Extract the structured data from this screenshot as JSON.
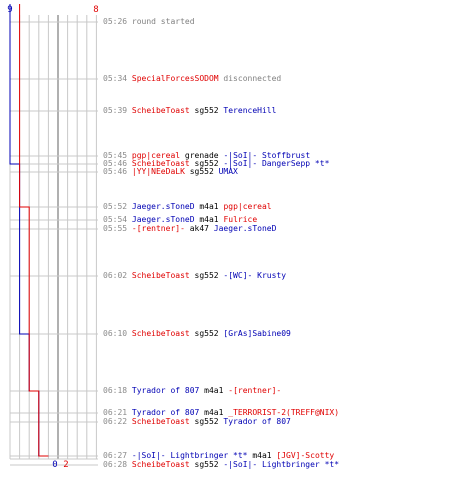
{
  "scores": {
    "blue_start": "9",
    "red_start": "8",
    "blue_end": "0",
    "red_end": "2"
  },
  "colors": {
    "red": "#e00000",
    "blue": "#0000b4",
    "time": "#8a8a8a",
    "grid": "#c8c8c8",
    "axis": "#606060"
  },
  "chart_data": {
    "type": "line",
    "series": [
      {
        "color": "#0000b4",
        "points": [
          [
            0,
            9
          ],
          [
            5,
            8
          ],
          [
            11,
            7
          ],
          [
            12,
            6
          ],
          [
            15,
            5
          ],
          [
            17,
            4
          ],
          [
            18,
            3
          ],
          [
            20,
            2
          ],
          [
            21,
            1
          ],
          [
            24,
            0
          ]
        ]
      },
      {
        "color": "#e00000",
        "points": [
          [
            0,
            8
          ],
          [
            7,
            7
          ],
          [
            12,
            6
          ],
          [
            15,
            5
          ],
          [
            20,
            4
          ],
          [
            21,
            3
          ],
          [
            22,
            2
          ]
        ]
      }
    ]
  },
  "events": [
    {
      "time": "05:26",
      "parts": [
        {
          "text": "round started",
          "c": "gray"
        }
      ]
    },
    {
      "time": "05:34",
      "parts": [
        {
          "text": "SpecialForcesSODOM",
          "c": "red"
        },
        {
          "text": " disconnected",
          "c": "gray"
        }
      ]
    },
    {
      "time": "05:39",
      "parts": [
        {
          "text": "ScheibeToast",
          "c": "red"
        },
        {
          "text": " sg552 ",
          "c": "black"
        },
        {
          "text": "TerenceHill",
          "c": "blue"
        }
      ]
    },
    {
      "time": "05:45",
      "parts": [
        {
          "text": "pgp|cereal",
          "c": "red"
        },
        {
          "text": " grenade ",
          "c": "black"
        },
        {
          "text": "-|SoI|- Stoffbrust",
          "c": "blue"
        }
      ]
    },
    {
      "time": "05:46",
      "parts": [
        {
          "text": "ScheibeToast",
          "c": "red"
        },
        {
          "text": " sg552 ",
          "c": "black"
        },
        {
          "text": "-|SoI|- DangerSepp *t*",
          "c": "blue"
        }
      ]
    },
    {
      "time": "05:46",
      "parts": [
        {
          "text": "|YY|NEeDaLK",
          "c": "red"
        },
        {
          "text": " sg552 ",
          "c": "black"
        },
        {
          "text": "UMAX",
          "c": "blue"
        }
      ]
    },
    {
      "time": "05:52",
      "parts": [
        {
          "text": "Jaeger.sToneD",
          "c": "blue"
        },
        {
          "text": " m4a1 ",
          "c": "black"
        },
        {
          "text": "pgp|cereal",
          "c": "red"
        }
      ]
    },
    {
      "time": "05:54",
      "parts": [
        {
          "text": "Jaeger.sToneD",
          "c": "blue"
        },
        {
          "text": " m4a1 ",
          "c": "black"
        },
        {
          "text": "Fulrice",
          "c": "red"
        }
      ]
    },
    {
      "time": "05:55",
      "parts": [
        {
          "text": "-[rentner]-",
          "c": "red"
        },
        {
          "text": " ak47 ",
          "c": "black"
        },
        {
          "text": "Jaeger.sToneD",
          "c": "blue"
        }
      ]
    },
    {
      "time": "06:02",
      "parts": [
        {
          "text": "ScheibeToast",
          "c": "red"
        },
        {
          "text": " sg552 ",
          "c": "black"
        },
        {
          "text": "-[WC]- Krusty",
          "c": "blue"
        }
      ]
    },
    {
      "time": "06:10",
      "parts": [
        {
          "text": "ScheibeToast",
          "c": "red"
        },
        {
          "text": " sg552 ",
          "c": "black"
        },
        {
          "text": "[GrAs]Sabine09",
          "c": "blue"
        }
      ]
    },
    {
      "time": "06:18",
      "parts": [
        {
          "text": "Tyrador of 807",
          "c": "blue"
        },
        {
          "text": " m4a1 ",
          "c": "black"
        },
        {
          "text": "-[rentner]-",
          "c": "red"
        }
      ]
    },
    {
      "time": "06:21",
      "parts": [
        {
          "text": "Tyrador of 807",
          "c": "blue"
        },
        {
          "text": " m4a1 ",
          "c": "black"
        },
        {
          "text": "_TERRORIST-2(TREFF@NIX)",
          "c": "red"
        }
      ]
    },
    {
      "time": "06:22",
      "parts": [
        {
          "text": "ScheibeToast",
          "c": "red"
        },
        {
          "text": " sg552 ",
          "c": "black"
        },
        {
          "text": "Tyrador of 807",
          "c": "blue"
        }
      ]
    },
    {
      "time": "06:27",
      "parts": [
        {
          "text": "-|SoI|- Lightbringer *t*",
          "c": "blue"
        },
        {
          "text": " m4a1 ",
          "c": "black"
        },
        {
          "text": "[JGV]-Scotty",
          "c": "red"
        }
      ]
    },
    {
      "time": "06:28",
      "parts": [
        {
          "text": "ScheibeToast",
          "c": "red"
        },
        {
          "text": " sg552 ",
          "c": "black"
        },
        {
          "text": "-|SoI|- Lightbringer *t*",
          "c": "blue"
        }
      ]
    }
  ]
}
